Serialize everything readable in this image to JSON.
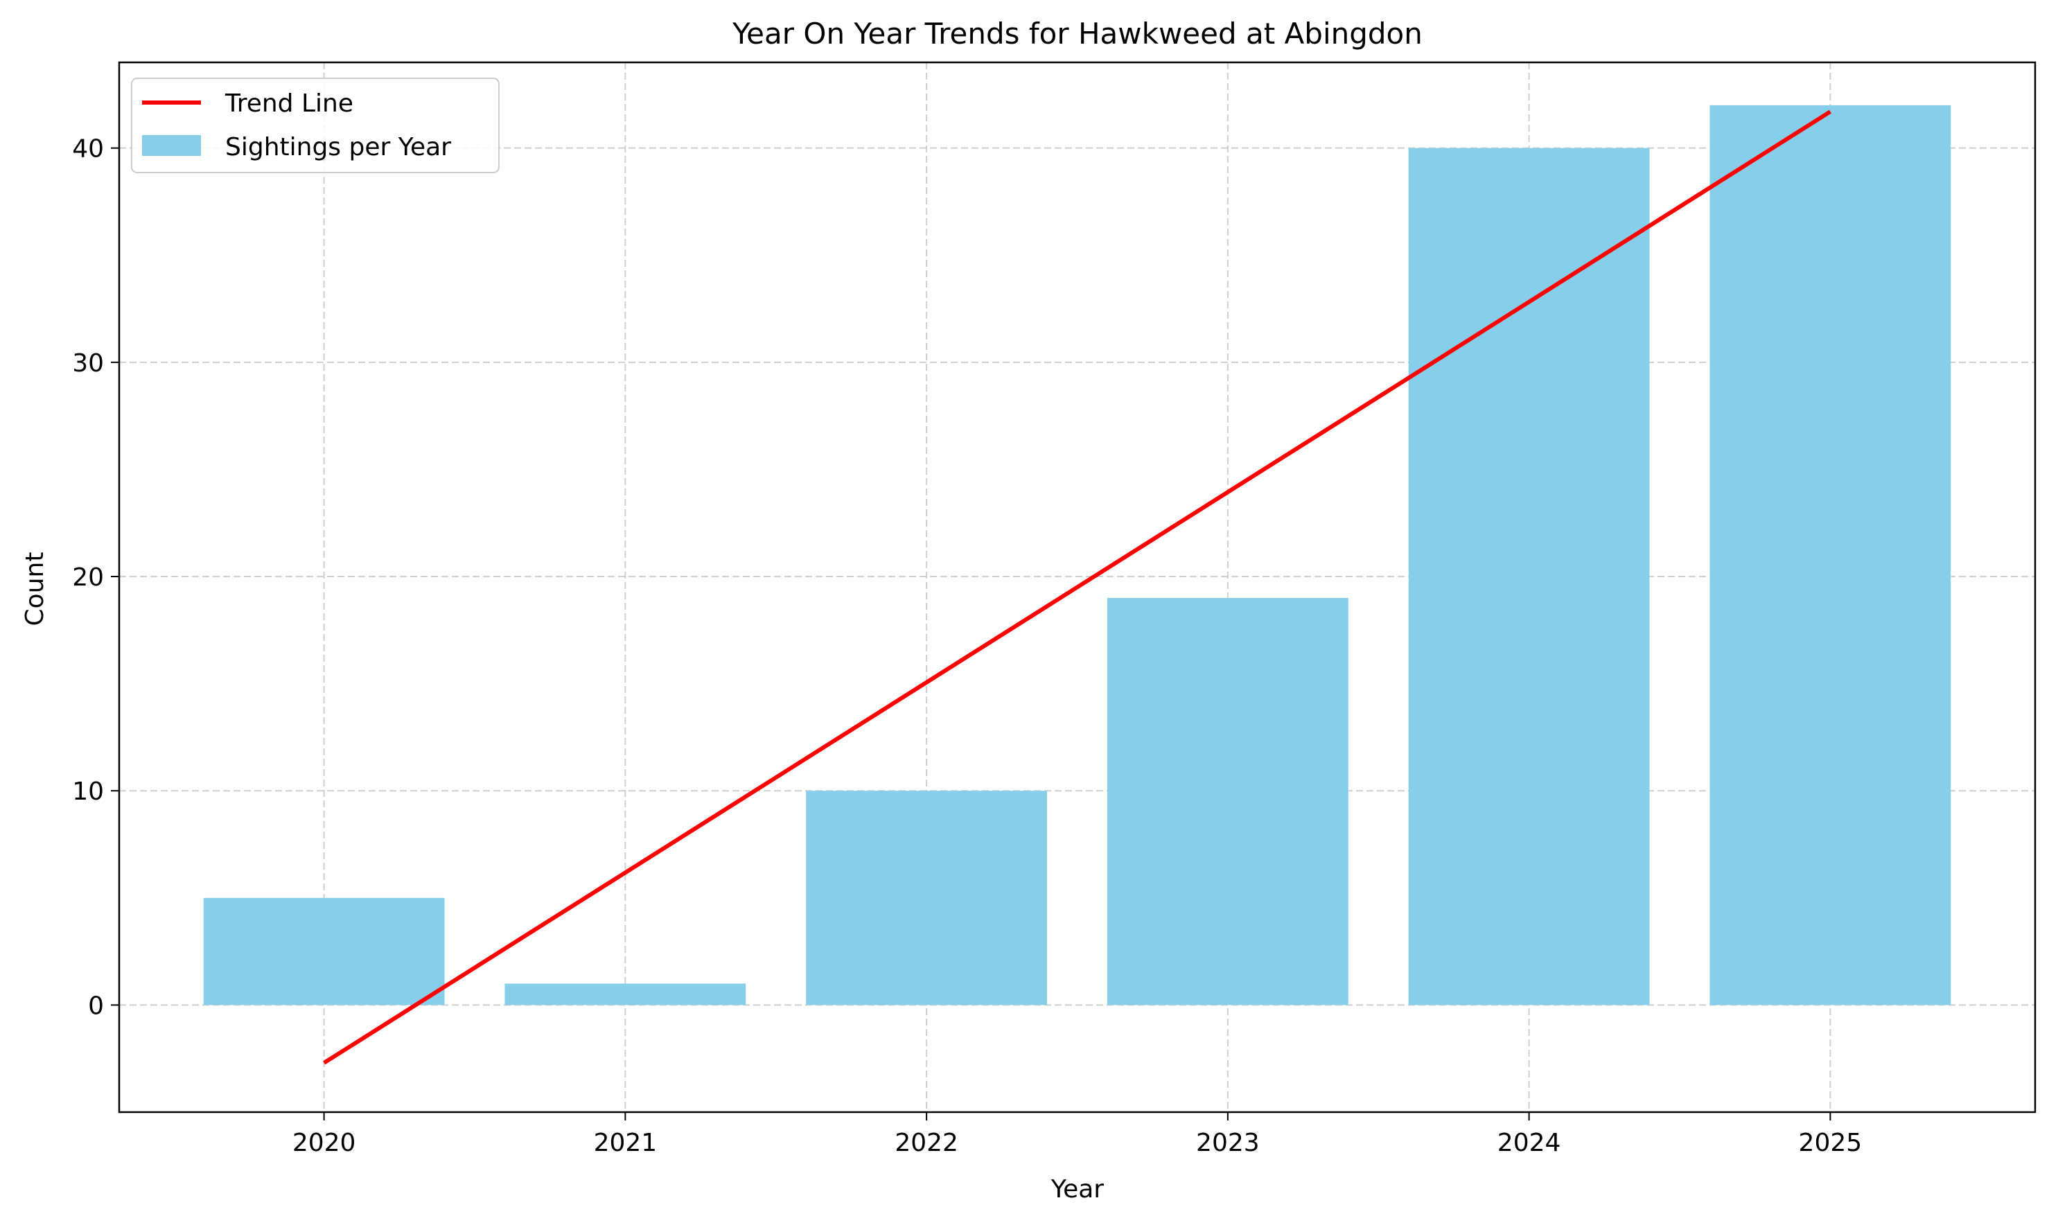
{
  "chart_data": {
    "type": "bar",
    "title": "Year On Year Trends for Hawkweed at Abingdon",
    "xlabel": "Year",
    "ylabel": "Count",
    "categories": [
      "2020",
      "2021",
      "2022",
      "2023",
      "2024",
      "2025"
    ],
    "series": [
      {
        "name": "Sightings per Year",
        "type": "bar",
        "values": [
          5,
          1,
          10,
          19,
          40,
          42
        ],
        "color": "#87ceeb"
      },
      {
        "name": "Trend Line",
        "type": "line",
        "start": -2.7,
        "end": 41.7,
        "color": "#ff0000"
      }
    ],
    "ylim": [
      -5,
      44
    ],
    "yticks": [
      0,
      10,
      20,
      30,
      40
    ],
    "grid": true,
    "legend_position": "top-left"
  }
}
